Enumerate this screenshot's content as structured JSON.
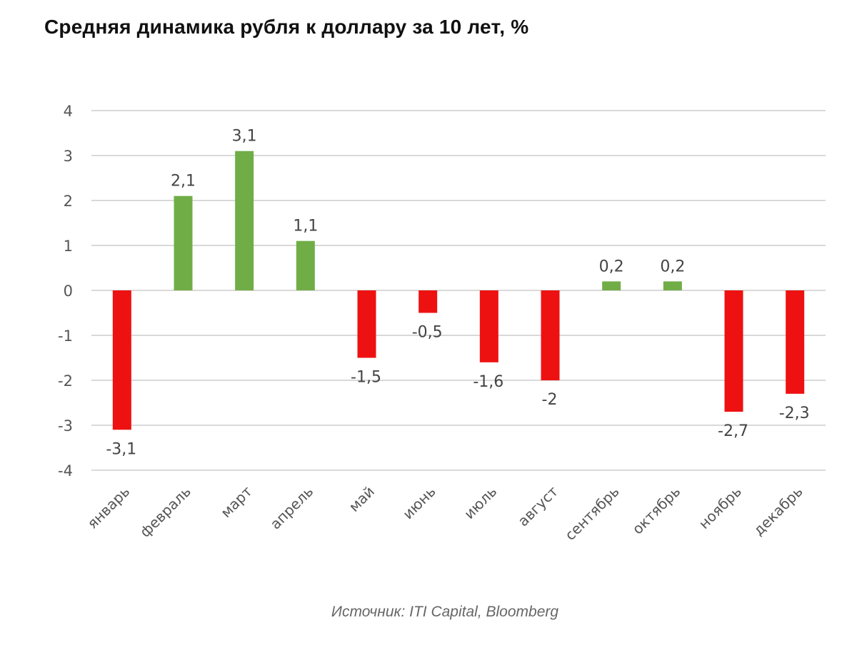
{
  "chart_data": {
    "type": "bar",
    "title": "Средняя динамика рубля к доллару за 10 лет, %",
    "categories": [
      "январь",
      "февраль",
      "март",
      "апрель",
      "май",
      "июнь",
      "июль",
      "август",
      "сентябрь",
      "октябрь",
      "ноябрь",
      "декабрь"
    ],
    "values": [
      -3.1,
      2.1,
      3.1,
      1.1,
      -1.5,
      -0.5,
      -1.6,
      -2,
      0.2,
      0.2,
      -2.7,
      -2.3
    ],
    "data_labels": [
      "-3,1",
      "2,1",
      "3,1",
      "1,1",
      "-1,5",
      "-0,5",
      "-1,6",
      "-2",
      "0,2",
      "0,2",
      "-2,7",
      "-2,3"
    ],
    "y_ticks": [
      4,
      3,
      2,
      1,
      0,
      -1,
      -2,
      -3,
      -4
    ],
    "y_tick_labels": [
      "4",
      "3",
      "2",
      "1",
      "0",
      "-1",
      "-2",
      "-3",
      "-4"
    ],
    "ylim": [
      -4,
      4
    ],
    "grid": true,
    "xlabel": "",
    "ylabel": "",
    "colors": {
      "positive": "#70AD47",
      "negative": "#EE1111",
      "grid": "#D9D9D9"
    }
  },
  "source": "Источник: ITI Capital, Bloomberg"
}
